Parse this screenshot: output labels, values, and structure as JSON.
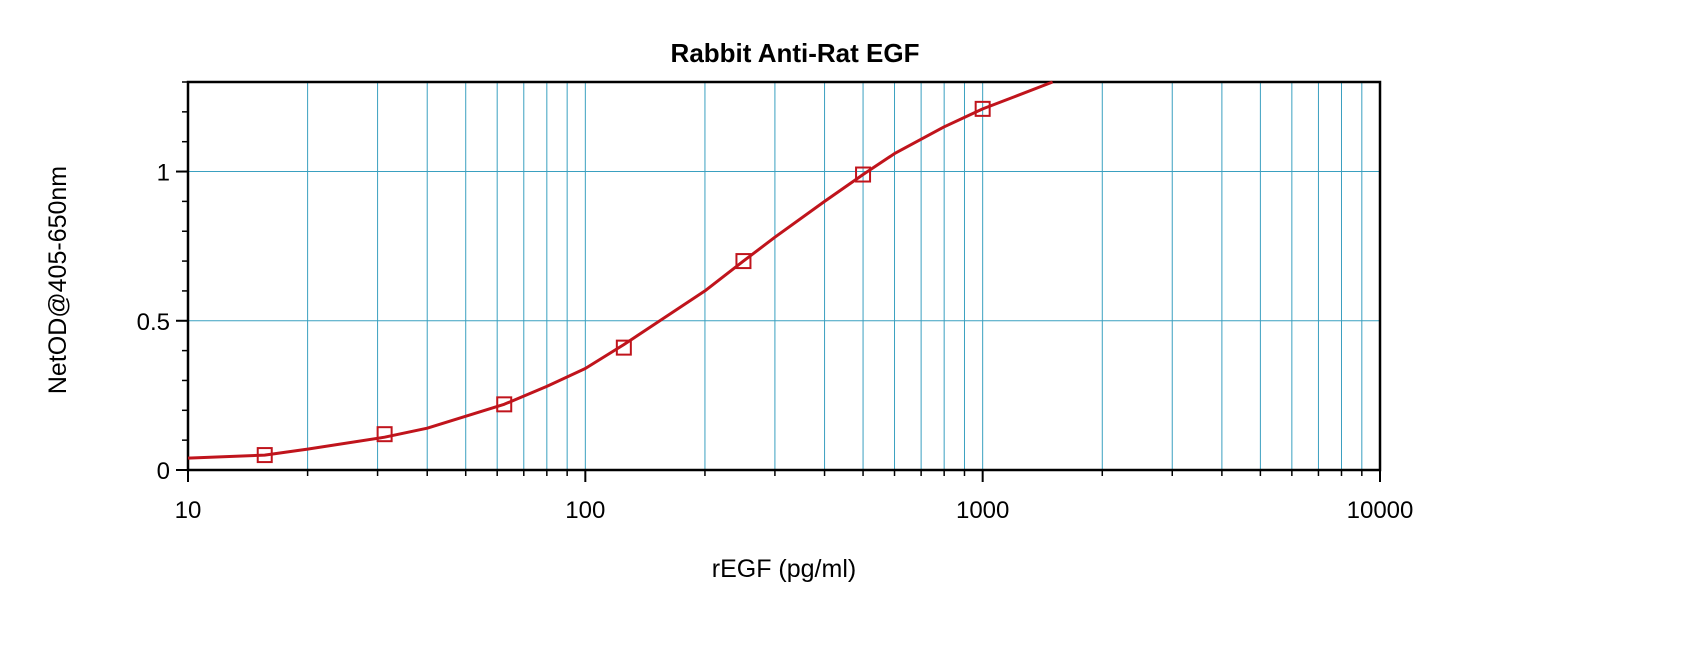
{
  "chart_data": {
    "type": "scatter",
    "title": "Rabbit Anti-Rat EGF",
    "xlabel": "rEGF (pg/ml)",
    "ylabel": "NetOD@405-650nm",
    "x_scale": "log",
    "xlim": [
      10,
      10000
    ],
    "ylim": [
      0,
      1.3
    ],
    "x_ticks": [
      {
        "value": 10,
        "label": "10"
      },
      {
        "value": 100,
        "label": "100"
      },
      {
        "value": 1000,
        "label": "1000"
      },
      {
        "value": 10000,
        "label": "10000"
      }
    ],
    "y_ticks": [
      {
        "value": 0,
        "label": "0"
      },
      {
        "value": 0.5,
        "label": "0.5"
      },
      {
        "value": 1,
        "label": "1"
      }
    ],
    "grid": true,
    "legend": "none",
    "series": [
      {
        "kind": "points",
        "marker": "square",
        "x": [
          15.6,
          31.25,
          62.5,
          125,
          250,
          500,
          1000
        ],
        "y": [
          0.05,
          0.12,
          0.22,
          0.41,
          0.7,
          0.99,
          1.21
        ]
      },
      {
        "kind": "fitted-curve",
        "x": [
          10,
          15.6,
          20,
          31.25,
          40,
          62.5,
          80,
          100,
          125,
          150,
          200,
          250,
          300,
          400,
          500,
          600,
          800,
          1000,
          1200,
          1500
        ],
        "y": [
          0.04,
          0.05,
          0.07,
          0.11,
          0.14,
          0.22,
          0.28,
          0.34,
          0.42,
          0.49,
          0.6,
          0.7,
          0.78,
          0.9,
          0.99,
          1.06,
          1.15,
          1.21,
          1.25,
          1.3
        ]
      }
    ],
    "colors": {
      "curve": "#c0141c",
      "marker": "#c0141c",
      "grid": "#3aa0c0",
      "axis": "#000000"
    }
  }
}
